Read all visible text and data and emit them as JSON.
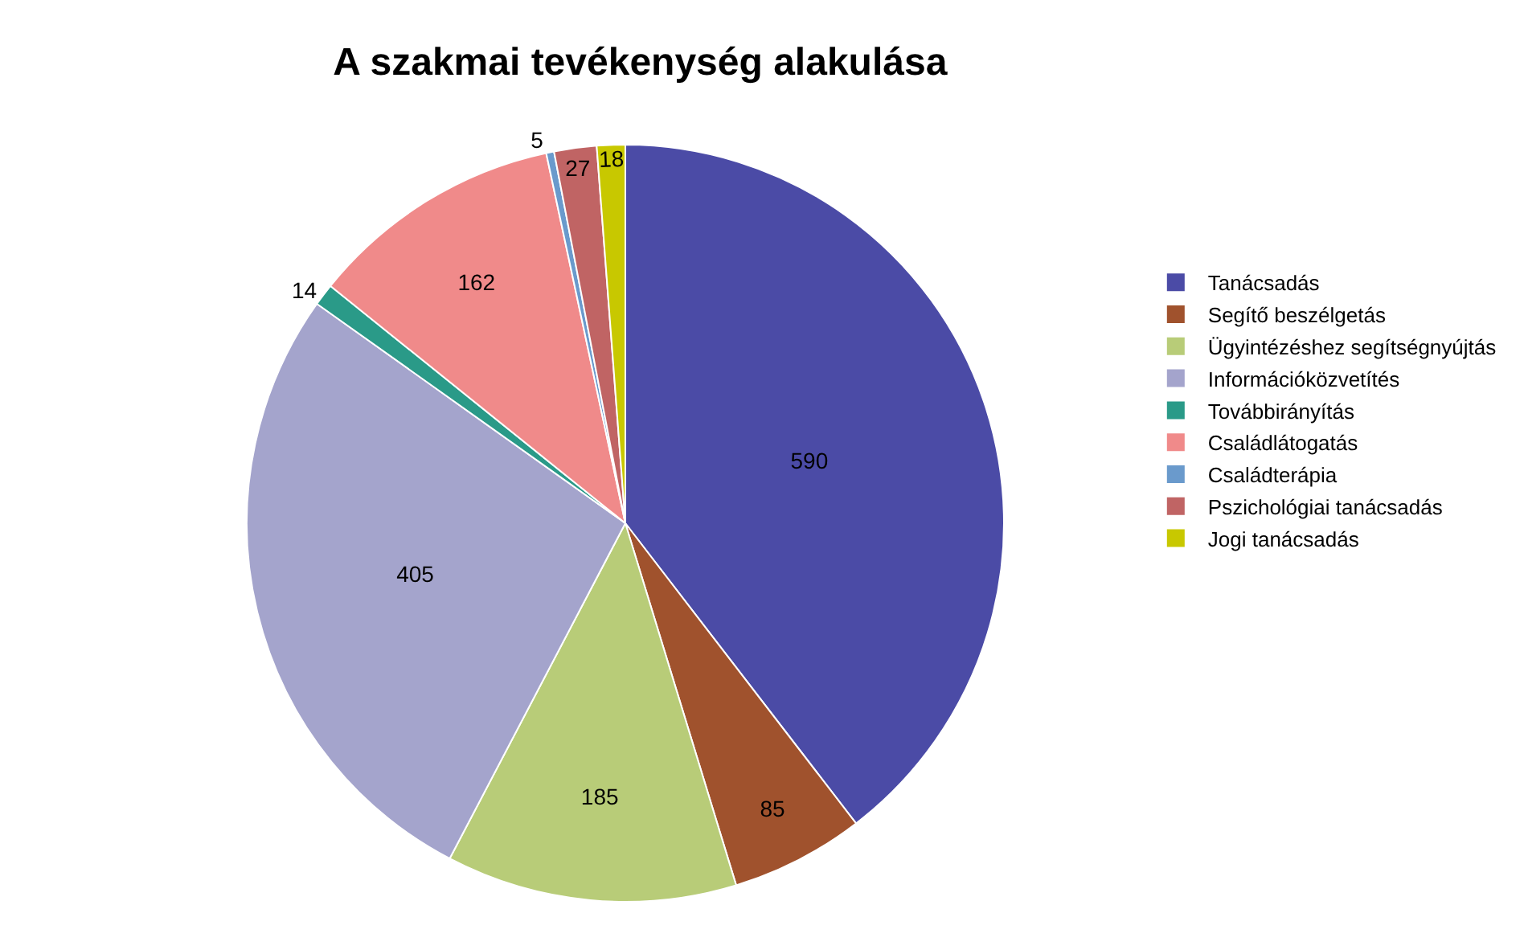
{
  "chart_data": {
    "type": "pie",
    "title": "A szakmai tevékenység alakulása",
    "categories": [
      "Tanácsadás",
      "Segítő beszélgetás",
      "Ügyintézéshez segítségnyújtás",
      "Információközvetítés",
      "Továbbirányítás",
      "Családlátogatás",
      "Családterápia",
      "Pszichológiai tanácsadás",
      "Jogi tanácsadás"
    ],
    "values": [
      590,
      85,
      185,
      405,
      14,
      162,
      5,
      27,
      18
    ],
    "colors": [
      "#4b4ba6",
      "#a0522d",
      "#b8cc78",
      "#a4a4cc",
      "#2a9a88",
      "#f08a8a",
      "#6a9acc",
      "#c06464",
      "#c8c800"
    ],
    "data_labels": true,
    "legend": "right"
  }
}
